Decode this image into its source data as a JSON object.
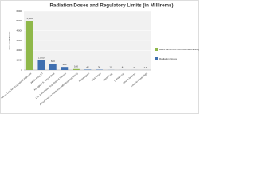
{
  "chart_data": {
    "type": "bar",
    "title": "Radiation Doses and Regulatory Limits (in Millirems)",
    "y_label": "Dose in Millirems",
    "categories": [
      "Annual Limit for Occupational Exposure",
      "Whole Body CT",
      "Average U.S. Annual Dose",
      "U.S. Annual Dose from Natural Sources",
      "Annual Limit for Public from NRC-licensed Activity",
      "Mammogram",
      "Brick House",
      "Chest X-ray",
      "Dental X-ray",
      "Smoke Detector",
      "Coast-to-Coast Flight"
    ],
    "series": [
      {
        "name": "Basic Limit from NRC-licensed activity",
        "color": "#8fb84a",
        "values": [
          5000,
          null,
          null,
          null,
          100,
          null,
          null,
          null,
          null,
          null,
          null
        ],
        "value_labels": [
          "5,000",
          null,
          null,
          null,
          "100",
          null,
          null,
          null,
          null,
          null,
          null
        ]
      },
      {
        "name": "Radiation Doses",
        "color": "#3f6fb0",
        "values": [
          null,
          1000,
          620,
          310,
          null,
          42,
          36,
          10,
          4,
          3,
          2.5
        ],
        "value_labels": [
          null,
          "1,000",
          "620",
          "310",
          null,
          "42",
          "36",
          "10",
          "4",
          "3",
          "2.5"
        ]
      }
    ],
    "ylim": [
      0,
      6000
    ],
    "yticks": [
      0,
      {
        "value": 1000,
        "label": "1,000"
      },
      {
        "value": 2000,
        "label": "2,000"
      },
      {
        "value": 3000,
        "label": "3,000"
      },
      {
        "value": 4000,
        "label": "4,000"
      },
      {
        "value": 5000,
        "label": "5,000"
      },
      {
        "value": 6000,
        "label": "6,000"
      }
    ],
    "grid": true
  }
}
